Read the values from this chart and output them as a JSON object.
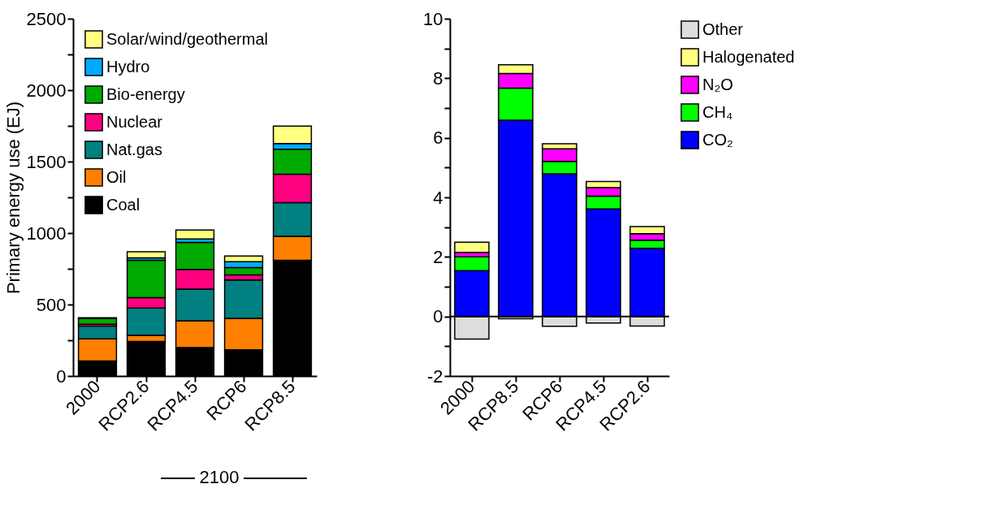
{
  "chart_data": [
    {
      "type": "bar",
      "stacked": true,
      "ylabel": "Primary energy use (EJ)",
      "categories": [
        "2000",
        "RCP2.6",
        "RCP4.5",
        "RCP6",
        "RCP8.5"
      ],
      "series": [
        {
          "name": "Coal",
          "color": "#000000",
          "values": [
            105,
            241,
            199,
            183,
            809
          ]
        },
        {
          "name": "Oil",
          "color": "#ff8000",
          "values": [
            155,
            45,
            188,
            221,
            168
          ]
        },
        {
          "name": "Nat.gas",
          "color": "#008080",
          "values": [
            90,
            190,
            221,
            268,
            236
          ]
        },
        {
          "name": "Nuclear",
          "color": "#ff0080",
          "values": [
            12,
            72,
            138,
            36,
            199
          ]
        },
        {
          "name": "Bio-energy",
          "color": "#00aa00",
          "values": [
            40,
            261,
            188,
            50,
            175
          ]
        },
        {
          "name": "Hydro",
          "color": "#00aaff",
          "values": [
            null,
            18,
            25,
            42,
            40
          ]
        },
        {
          "name": "Solar/wind/geothermal",
          "color": "#ffff80",
          "values": [
            5,
            42,
            62,
            40,
            121
          ]
        }
      ],
      "ylim": [
        0,
        2500
      ],
      "yticks": [
        0,
        {
          "value": 250,
          "label": null
        },
        500,
        {
          "value": 750,
          "label": null
        },
        1000,
        {
          "value": 1250,
          "label": null
        },
        1500,
        {
          "value": 1750,
          "label": null
        },
        2000,
        {
          "value": 2250,
          "label": null
        },
        2500
      ],
      "legend": "top left",
      "annotations": [
        "2100"
      ]
    },
    {
      "type": "bar",
      "stacked": true,
      "categories": [
        "2000",
        "RCP8.5",
        "RCP6",
        "RCP4.5",
        "RCP2.6"
      ],
      "series": [
        {
          "name": "CO₂",
          "color": "#0000ff",
          "values": [
            1.54,
            6.59,
            4.79,
            3.61,
            2.29
          ]
        },
        {
          "name": "CH₄",
          "color": "#00ff00",
          "values": [
            0.46,
            1.08,
            0.42,
            0.43,
            0.27
          ]
        },
        {
          "name": "N₂O",
          "color": "#ff00ff",
          "values": [
            0.15,
            0.49,
            0.42,
            0.29,
            0.22
          ]
        },
        {
          "name": "Halogenated",
          "color": "#ffff80",
          "values": [
            0.34,
            0.29,
            0.17,
            0.2,
            0.24
          ]
        },
        {
          "name": "Other",
          "color": "#dddddd",
          "values": [
            -0.76,
            -0.08,
            -0.33,
            -0.22,
            -0.32
          ]
        }
      ],
      "ylim": [
        -2,
        10
      ],
      "yticks": [
        -2,
        {
          "value": -1,
          "label": null
        },
        0,
        {
          "value": 1,
          "label": null
        },
        2,
        {
          "value": 3,
          "label": null
        },
        4,
        {
          "value": 5,
          "label": null
        },
        6,
        {
          "value": 7,
          "label": null
        },
        8,
        {
          "value": 9,
          "label": null
        },
        10
      ],
      "ref_lines": [
        {
          "axis": "y",
          "value": 0
        }
      ],
      "legend": "top right"
    }
  ]
}
